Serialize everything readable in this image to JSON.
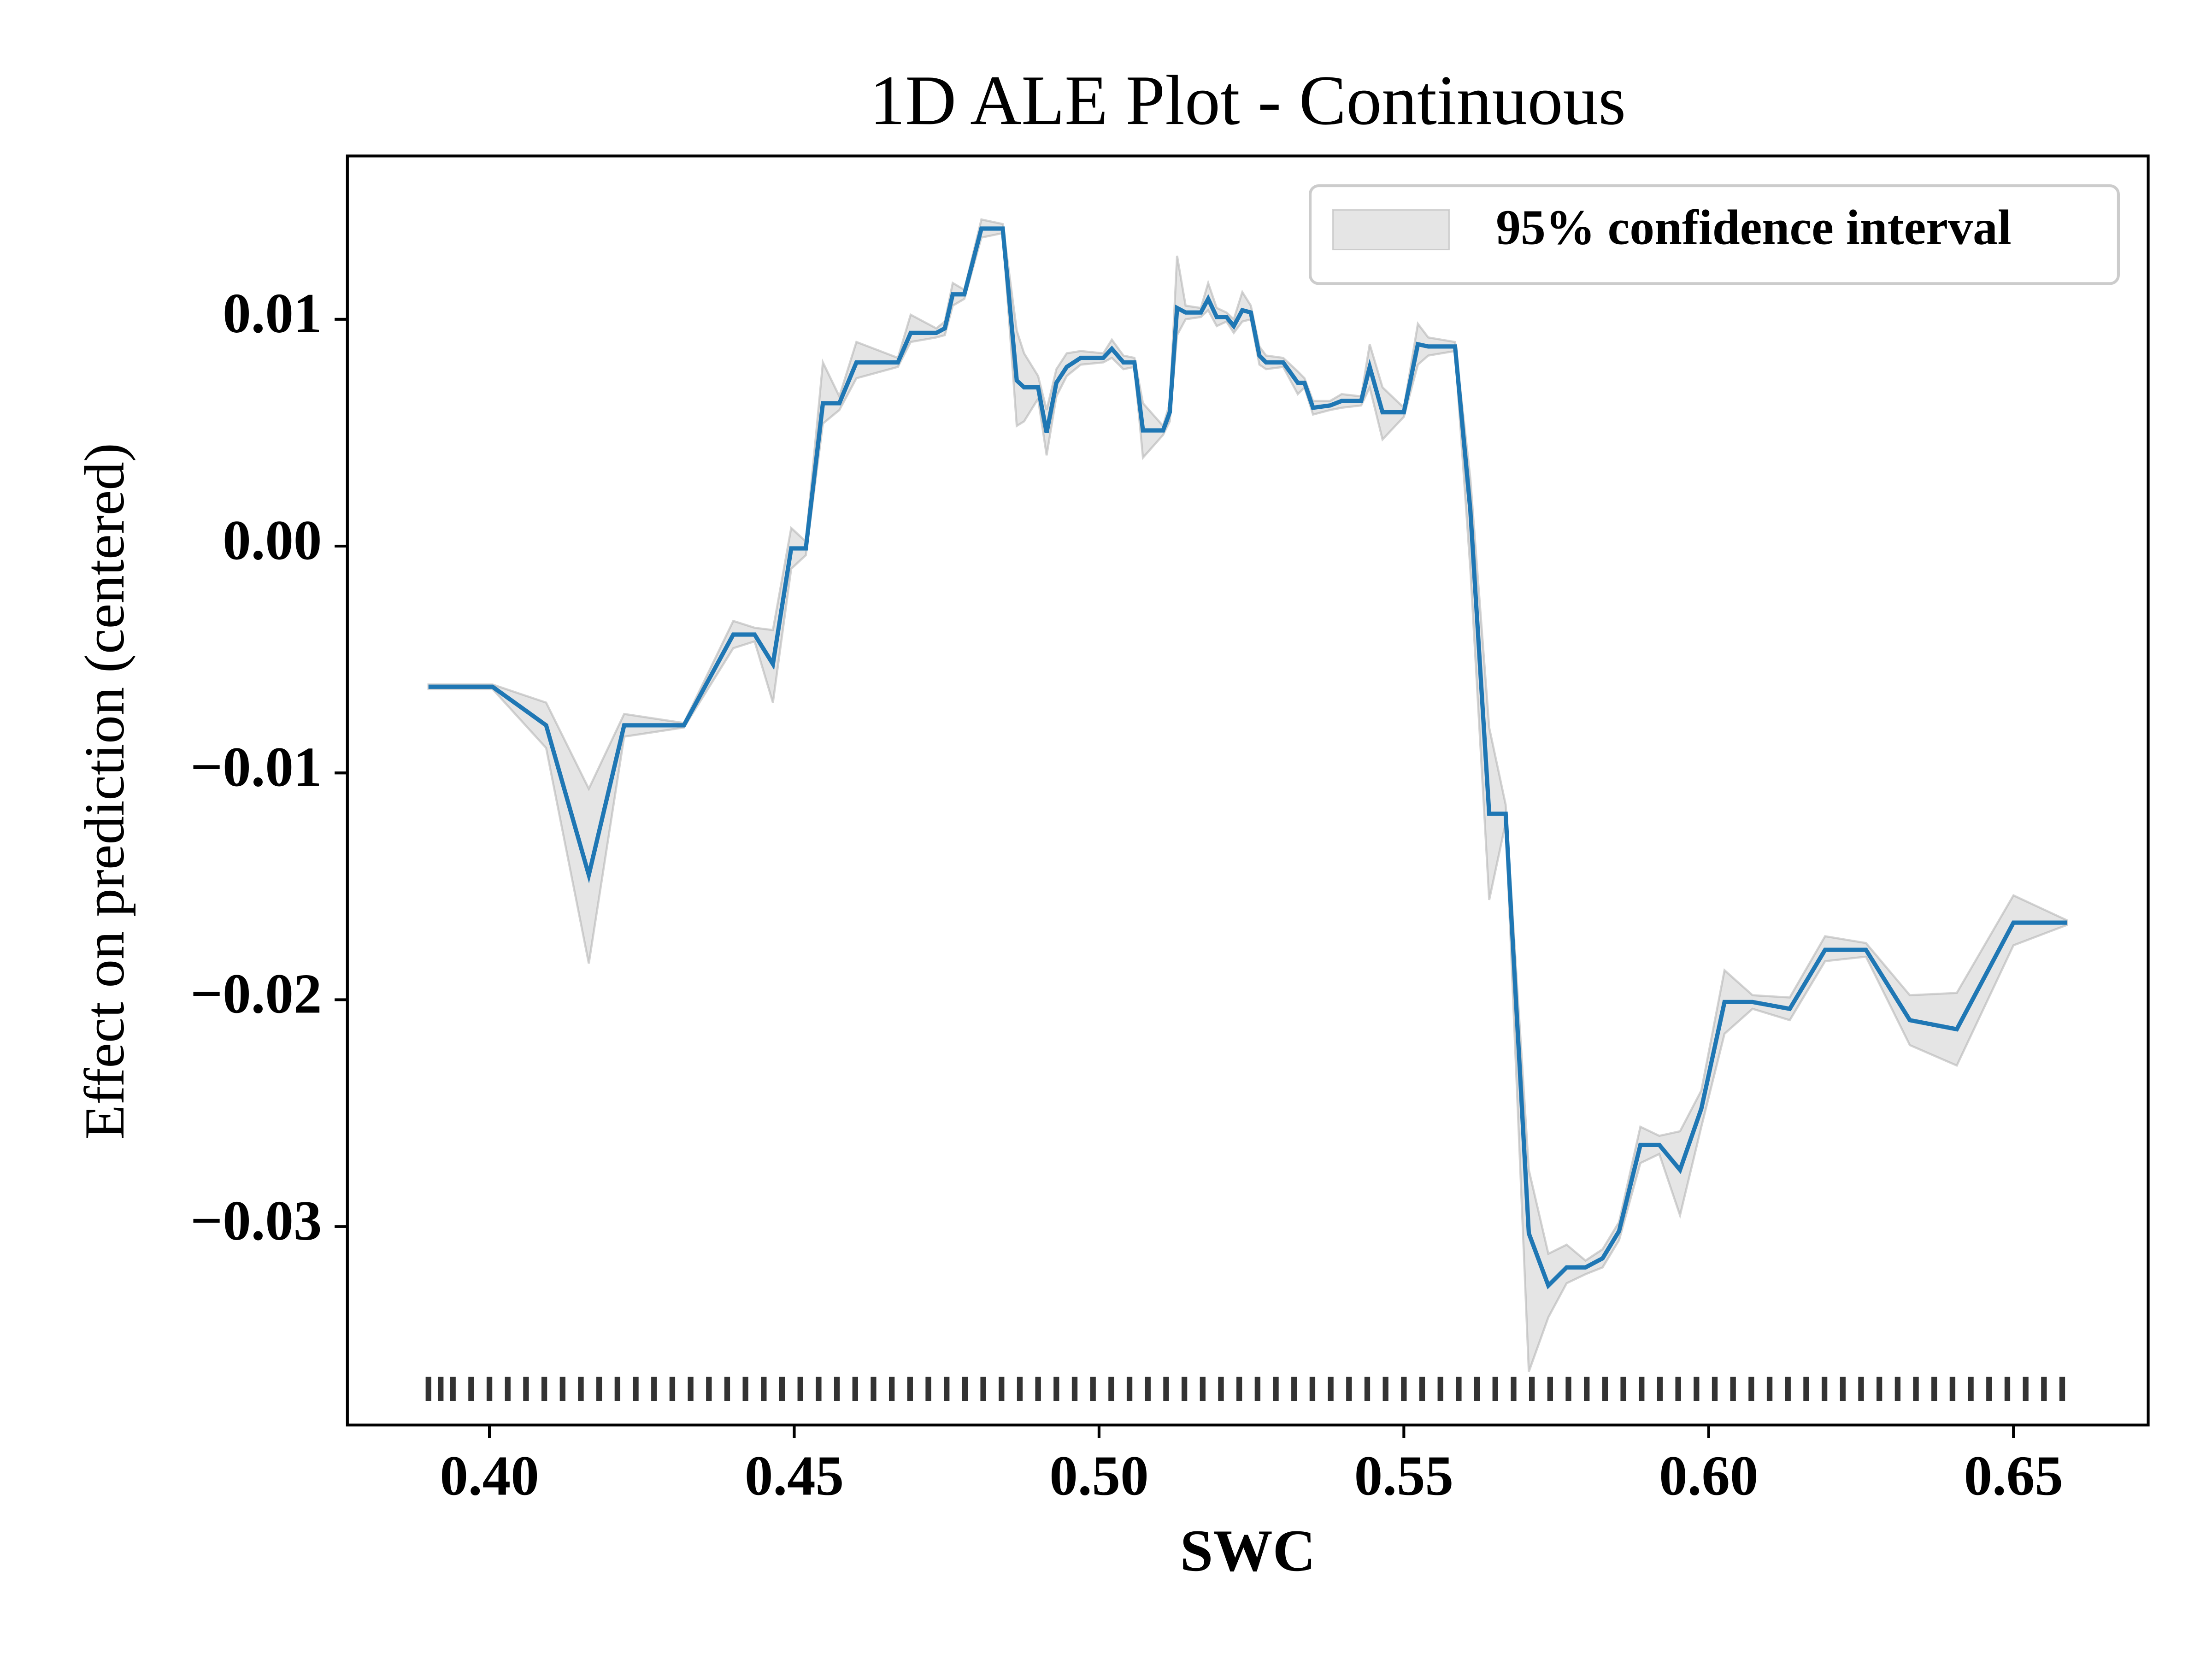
{
  "chart_data": {
    "type": "ale",
    "title": "1D ALE Plot - Continuous",
    "xlabel": "SWC",
    "ylabel": "Effect on prediction (centered)",
    "x": [
      0.39,
      0.4005,
      0.4093,
      0.4163,
      0.4221,
      0.4319,
      0.44,
      0.4435,
      0.4465,
      0.4495,
      0.4519,
      0.4547,
      0.4574,
      0.4602,
      0.467,
      0.4691,
      0.4733,
      0.4747,
      0.476,
      0.4779,
      0.4807,
      0.4842,
      0.4865,
      0.4877,
      0.49,
      0.4914,
      0.493,
      0.4947,
      0.497,
      0.5007,
      0.5021,
      0.504,
      0.5058,
      0.5072,
      0.5105,
      0.5116,
      0.5128,
      0.5142,
      0.5167,
      0.5179,
      0.5193,
      0.5209,
      0.5221,
      0.5235,
      0.5249,
      0.5263,
      0.5274,
      0.5302,
      0.5326,
      0.5337,
      0.5351,
      0.5379,
      0.5398,
      0.543,
      0.5444,
      0.5465,
      0.55,
      0.5523,
      0.554,
      0.5584,
      0.5609,
      0.564,
      0.5667,
      0.5705,
      0.5737,
      0.5767,
      0.5798,
      0.5826,
      0.5853,
      0.5888,
      0.5919,
      0.5953,
      0.5988,
      0.6026,
      0.6072,
      0.6133,
      0.6191,
      0.6258,
      0.633,
      0.6407,
      0.65,
      0.6588
    ],
    "values": [
      -0.0062,
      -0.0062,
      -0.0079,
      -0.0145,
      -0.0079,
      -0.0079,
      -0.0039,
      -0.0039,
      -0.0052,
      -0.0001,
      -0.0001,
      0.0063,
      0.0063,
      0.0081,
      0.0081,
      0.0094,
      0.0094,
      0.0096,
      0.0111,
      0.0111,
      0.014,
      0.014,
      0.0073,
      0.007,
      0.007,
      0.005,
      0.0072,
      0.0079,
      0.0083,
      0.0083,
      0.0087,
      0.0081,
      0.0081,
      0.0051,
      0.0051,
      0.0059,
      0.0105,
      0.0103,
      0.0103,
      0.0109,
      0.0101,
      0.0101,
      0.0097,
      0.0104,
      0.0103,
      0.0084,
      0.0081,
      0.0081,
      0.0072,
      0.0072,
      0.0061,
      0.0062,
      0.0064,
      0.0064,
      0.0079,
      0.0059,
      0.0059,
      0.0089,
      0.0088,
      0.0088,
      0.0016,
      -0.0118,
      -0.0118,
      -0.0303,
      -0.0326,
      -0.0318,
      -0.0318,
      -0.0314,
      -0.0302,
      -0.0264,
      -0.0264,
      -0.0275,
      -0.0248,
      -0.0201,
      -0.0201,
      -0.0204,
      -0.0178,
      -0.0178,
      -0.0209,
      -0.0213,
      -0.0166,
      -0.0166
    ],
    "lower": [
      -0.0063,
      -0.0063,
      -0.0089,
      -0.0184,
      -0.0084,
      -0.008,
      -0.0045,
      -0.0042,
      -0.0069,
      -0.001,
      -0.0004,
      0.0054,
      0.006,
      0.0074,
      0.0079,
      0.009,
      0.0092,
      0.0093,
      0.0106,
      0.0109,
      0.0136,
      0.0138,
      0.0053,
      0.0055,
      0.0065,
      0.004,
      0.0066,
      0.0075,
      0.008,
      0.0081,
      0.0083,
      0.0078,
      0.0079,
      0.0039,
      0.0049,
      0.0055,
      0.0093,
      0.01,
      0.0101,
      0.0104,
      0.0097,
      0.0099,
      0.0094,
      0.0099,
      0.01,
      0.008,
      0.0078,
      0.0079,
      0.0067,
      0.007,
      0.0058,
      0.006,
      0.0061,
      0.0062,
      0.007,
      0.0047,
      0.0057,
      0.008,
      0.0084,
      0.0086,
      -0.001,
      -0.0156,
      -0.0122,
      -0.0364,
      -0.034,
      -0.0325,
      -0.0321,
      -0.0318,
      -0.0306,
      -0.0272,
      -0.0268,
      -0.0295,
      -0.0256,
      -0.0215,
      -0.0204,
      -0.0209,
      -0.0183,
      -0.0181,
      -0.022,
      -0.0229,
      -0.0176,
      -0.0167
    ],
    "upper": [
      -0.0061,
      -0.0061,
      -0.0069,
      -0.0107,
      -0.0074,
      -0.0078,
      -0.0033,
      -0.0036,
      -0.0037,
      0.0008,
      0.0002,
      0.0081,
      0.0066,
      0.009,
      0.0083,
      0.0102,
      0.0096,
      0.0099,
      0.0116,
      0.0113,
      0.0144,
      0.0142,
      0.0095,
      0.0085,
      0.0075,
      0.006,
      0.0078,
      0.0085,
      0.0086,
      0.0085,
      0.0091,
      0.0084,
      0.0083,
      0.0063,
      0.0053,
      0.0063,
      0.0128,
      0.0106,
      0.0105,
      0.0116,
      0.0105,
      0.0103,
      0.01,
      0.0112,
      0.0106,
      0.0088,
      0.0084,
      0.0083,
      0.0077,
      0.0074,
      0.0064,
      0.0064,
      0.0067,
      0.0066,
      0.0089,
      0.007,
      0.0061,
      0.0098,
      0.0092,
      0.009,
      0.003,
      -0.008,
      -0.0114,
      -0.0275,
      -0.0312,
      -0.0308,
      -0.0315,
      -0.031,
      -0.0298,
      -0.0256,
      -0.026,
      -0.0258,
      -0.024,
      -0.0187,
      -0.0198,
      -0.0199,
      -0.0172,
      -0.0175,
      -0.0198,
      -0.0197,
      -0.0154,
      -0.0165
    ],
    "rug": [
      0.39,
      0.392,
      0.394,
      0.397,
      0.4,
      0.403,
      0.406,
      0.409,
      0.412,
      0.415,
      0.418,
      0.421,
      0.424,
      0.427,
      0.43,
      0.433,
      0.436,
      0.439,
      0.442,
      0.445,
      0.448,
      0.451,
      0.454,
      0.457,
      0.46,
      0.463,
      0.466,
      0.469,
      0.472,
      0.475,
      0.478,
      0.481,
      0.484,
      0.487,
      0.49,
      0.493,
      0.496,
      0.499,
      0.502,
      0.505,
      0.508,
      0.511,
      0.514,
      0.517,
      0.52,
      0.523,
      0.526,
      0.529,
      0.532,
      0.535,
      0.538,
      0.541,
      0.544,
      0.547,
      0.55,
      0.553,
      0.556,
      0.559,
      0.562,
      0.565,
      0.568,
      0.571,
      0.574,
      0.577,
      0.58,
      0.583,
      0.586,
      0.589,
      0.592,
      0.595,
      0.598,
      0.601,
      0.604,
      0.607,
      0.61,
      0.613,
      0.616,
      0.619,
      0.622,
      0.625,
      0.628,
      0.631,
      0.634,
      0.637,
      0.64,
      0.643,
      0.646,
      0.649,
      0.652,
      0.655,
      0.658
    ],
    "color": "#1f77b4",
    "ci_label": "95% confidence interval",
    "ci_color": "#d3d3d3",
    "rug_color": "#000000",
    "legend": "upper right",
    "xlim": [
      0.3767,
      0.6721
    ],
    "ylim": [
      -0.03875,
      0.0172
    ],
    "xticks": [
      {
        "value": 0.4,
        "label": "0.40"
      },
      {
        "value": 0.45,
        "label": "0.45"
      },
      {
        "value": 0.5,
        "label": "0.50"
      },
      {
        "value": 0.55,
        "label": "0.55"
      },
      {
        "value": 0.6,
        "label": "0.60"
      },
      {
        "value": 0.65,
        "label": "0.65"
      }
    ],
    "yticks": [
      {
        "value": -0.03,
        "label": "−0.03"
      },
      {
        "value": -0.02,
        "label": "−0.02"
      },
      {
        "value": -0.01,
        "label": "−0.01"
      },
      {
        "value": 0,
        "label": "0.00"
      },
      0.01
    ]
  }
}
